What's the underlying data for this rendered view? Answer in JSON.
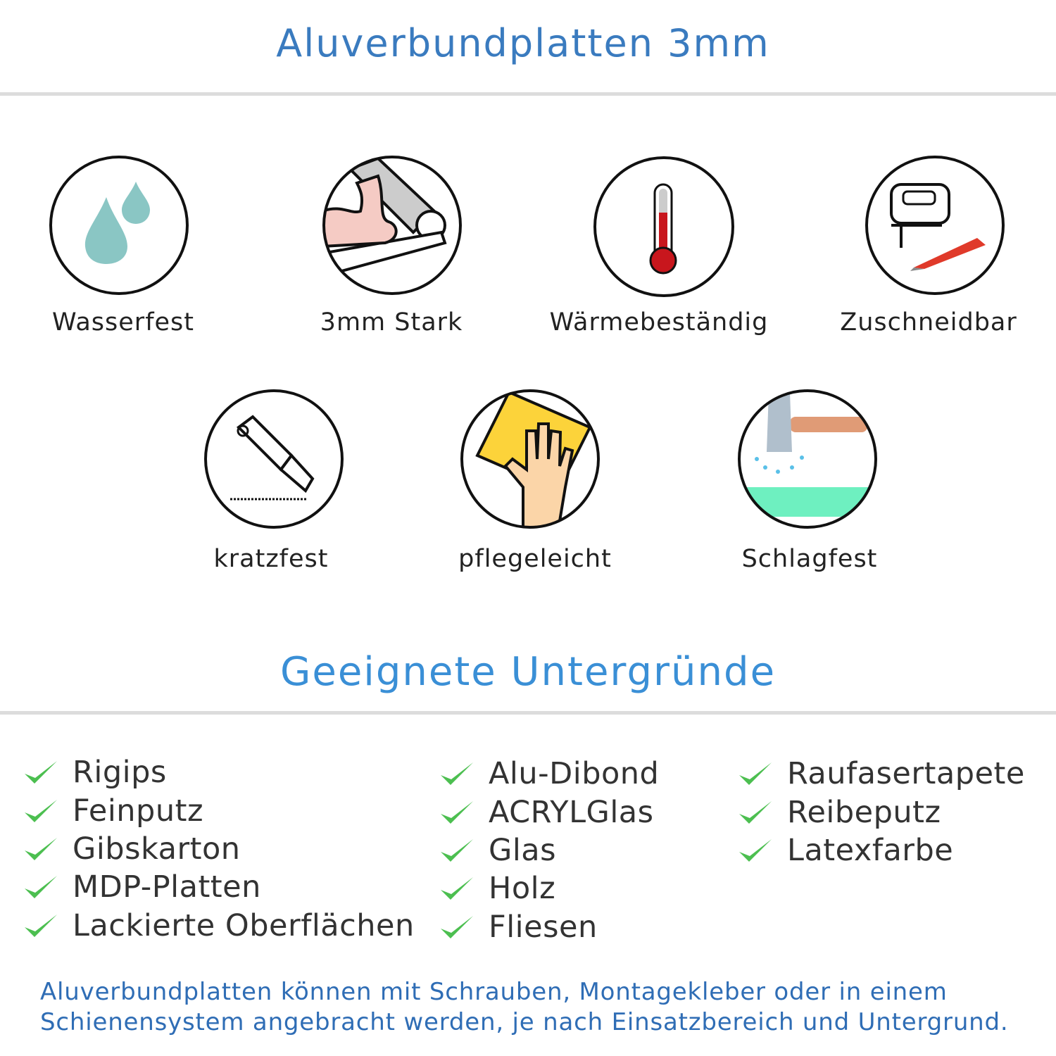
{
  "header": {
    "title": "Aluverbundplatten 3mm"
  },
  "features": [
    {
      "label": "Wasserfest",
      "icon": "water-drops-icon"
    },
    {
      "label": "3mm Stark",
      "icon": "strong-arm-icon"
    },
    {
      "label": "Wärmebeständig",
      "icon": "thermometer-icon"
    },
    {
      "label": "Zuschneidbar",
      "icon": "jigsaw-icon"
    },
    {
      "label": "kratzfest",
      "icon": "cutter-knife-icon"
    },
    {
      "label": "pflegeleicht",
      "icon": "cleaning-hand-icon"
    },
    {
      "label": "Schlagfest",
      "icon": "hammer-icon"
    }
  ],
  "surfaces": {
    "title": "Geeignete Untergründe",
    "columns": [
      [
        "Rigips",
        "Feinputz",
        "Gibskarton",
        "MDP-Platten",
        "Lackierte Oberflächen"
      ],
      [
        "Alu-Dibond",
        "ACRYLGlas",
        "Glas",
        "Holz",
        "Fliesen"
      ],
      [
        "Raufasertapete",
        "Reibeputz",
        "Latexfarbe"
      ]
    ]
  },
  "footer": {
    "line1": "Aluverbundplatten können mit Schrauben, Montagekleber oder in einem",
    "line2": "Schienensystem angebracht werden, je nach Einsatzbereich und Untergrund."
  },
  "colors": {
    "title": "#3a7bbf",
    "subtitle": "#3a8fd6",
    "check": "#4cbf50",
    "text": "#333333",
    "footer": "#2f6db5"
  }
}
